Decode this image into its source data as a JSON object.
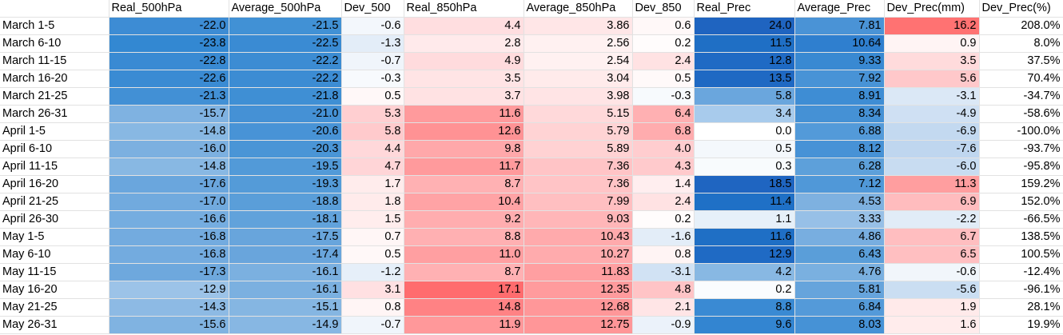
{
  "headers": [
    "",
    "Real_500hPa",
    "Average_500hPa",
    "Dev_500",
    "Real_850hPa",
    "Average_850hPa",
    "Dev_850",
    "Real_Prec",
    "Average_Prec",
    "Dev_Prec(mm)",
    "Dev_Prec(%)"
  ],
  "rows": [
    {
      "label": "March 1-5",
      "cells": [
        {
          "text": "-22.0",
          "bg": "#3d8cd4"
        },
        {
          "text": "-21.5",
          "bg": "#4191d5"
        },
        {
          "text": "-0.6",
          "bg": "#f3f7fc"
        },
        {
          "text": "4.4",
          "bg": "#ffdee0"
        },
        {
          "text": "3.86",
          "bg": "#ffe6e7"
        },
        {
          "text": "0.6",
          "bg": "#fff8f8"
        },
        {
          "text": "24.0",
          "bg": "#1f64c0"
        },
        {
          "text": "7.81",
          "bg": "#4a93d6"
        },
        {
          "text": "16.2",
          "bg": "#ff7272"
        },
        {
          "text": "208.0%",
          "bg": "#ffffff"
        }
      ]
    },
    {
      "label": "March 6-10",
      "cells": [
        {
          "text": "-23.8",
          "bg": "#3388d2"
        },
        {
          "text": "-22.5",
          "bg": "#3a8bd3"
        },
        {
          "text": "-1.3",
          "bg": "#e3edf8"
        },
        {
          "text": "2.8",
          "bg": "#ffeaeb"
        },
        {
          "text": "2.56",
          "bg": "#fff1f1"
        },
        {
          "text": "0.2",
          "bg": "#fffcfc"
        },
        {
          "text": "11.5",
          "bg": "#1f6fc5"
        },
        {
          "text": "10.64",
          "bg": "#2f7fcf"
        },
        {
          "text": "0.9",
          "bg": "#fff4f4"
        },
        {
          "text": "8.0%",
          "bg": "#ffffff"
        }
      ]
    },
    {
      "label": "March 11-15",
      "cells": [
        {
          "text": "-22.8",
          "bg": "#398ad3"
        },
        {
          "text": "-22.2",
          "bg": "#3c8cd3"
        },
        {
          "text": "-0.7",
          "bg": "#f0f5fb"
        },
        {
          "text": "4.9",
          "bg": "#ffdbdd"
        },
        {
          "text": "2.54",
          "bg": "#fff1f1"
        },
        {
          "text": "2.4",
          "bg": "#ffe2e3"
        },
        {
          "text": "12.8",
          "bg": "#1f6ac4"
        },
        {
          "text": "9.33",
          "bg": "#3989d2"
        },
        {
          "text": "3.5",
          "bg": "#ffdbdc"
        },
        {
          "text": "37.5%",
          "bg": "#ffffff"
        }
      ]
    },
    {
      "label": "March 16-20",
      "cells": [
        {
          "text": "-22.6",
          "bg": "#3a8bd3"
        },
        {
          "text": "-22.2",
          "bg": "#3c8cd3"
        },
        {
          "text": "-0.3",
          "bg": "#f7fafd"
        },
        {
          "text": "3.5",
          "bg": "#ffe4e5"
        },
        {
          "text": "3.04",
          "bg": "#ffebeb"
        },
        {
          "text": "0.5",
          "bg": "#fff9f9"
        },
        {
          "text": "13.5",
          "bg": "#1f69c3"
        },
        {
          "text": "7.92",
          "bg": "#4893d6"
        },
        {
          "text": "5.6",
          "bg": "#ffc8ca"
        },
        {
          "text": "70.4%",
          "bg": "#ffffff"
        }
      ]
    },
    {
      "label": "March 21-25",
      "cells": [
        {
          "text": "-21.3",
          "bg": "#4290d5"
        },
        {
          "text": "-21.8",
          "bg": "#3f8fd4"
        },
        {
          "text": "0.5",
          "bg": "#fff8f8"
        },
        {
          "text": "3.7",
          "bg": "#ffe2e3"
        },
        {
          "text": "3.98",
          "bg": "#ffe4e5"
        },
        {
          "text": "-0.3",
          "bg": "#f7fafd"
        },
        {
          "text": "5.8",
          "bg": "#6aa6dd"
        },
        {
          "text": "8.91",
          "bg": "#3e8dd4"
        },
        {
          "text": "-3.1",
          "bg": "#dbe8f6"
        },
        {
          "text": "-34.7%",
          "bg": "#ffffff"
        }
      ]
    },
    {
      "label": "March 26-31",
      "cells": [
        {
          "text": "-15.7",
          "bg": "#7fb2e1"
        },
        {
          "text": "-21.0",
          "bg": "#4591d5"
        },
        {
          "text": "5.3",
          "bg": "#ffcfd1"
        },
        {
          "text": "11.6",
          "bg": "#ff9a9c"
        },
        {
          "text": "5.15",
          "bg": "#ffd9da"
        },
        {
          "text": "6.4",
          "bg": "#ffb0b2"
        },
        {
          "text": "3.4",
          "bg": "#a8cbec"
        },
        {
          "text": "8.34",
          "bg": "#4591d5"
        },
        {
          "text": "-4.9",
          "bg": "#cfe0f3"
        },
        {
          "text": "-58.6%",
          "bg": "#ffffff"
        }
      ]
    },
    {
      "label": "April 1-5",
      "cells": [
        {
          "text": "-14.8",
          "bg": "#88b8e3"
        },
        {
          "text": "-20.6",
          "bg": "#4893d6"
        },
        {
          "text": "5.8",
          "bg": "#ffcacc"
        },
        {
          "text": "12.6",
          "bg": "#ff9294"
        },
        {
          "text": "5.79",
          "bg": "#ffd3d4"
        },
        {
          "text": "6.8",
          "bg": "#ffacae"
        },
        {
          "text": "0.0",
          "bg": "#ffffff"
        },
        {
          "text": "6.88",
          "bg": "#539ad9"
        },
        {
          "text": "-6.9",
          "bg": "#c3d9f0"
        },
        {
          "text": "-100.0%",
          "bg": "#ffffff"
        }
      ]
    },
    {
      "label": "April 6-10",
      "cells": [
        {
          "text": "-16.0",
          "bg": "#7cb0e0"
        },
        {
          "text": "-20.3",
          "bg": "#4a95d6"
        },
        {
          "text": "4.4",
          "bg": "#ffd8da"
        },
        {
          "text": "9.8",
          "bg": "#ffa8aa"
        },
        {
          "text": "5.89",
          "bg": "#ffd2d3"
        },
        {
          "text": "4.0",
          "bg": "#ffcdcf"
        },
        {
          "text": "0.5",
          "bg": "#f4f8fc"
        },
        {
          "text": "8.12",
          "bg": "#4792d6"
        },
        {
          "text": "-7.6",
          "bg": "#bfd6ef"
        },
        {
          "text": "-93.7%",
          "bg": "#ffffff"
        }
      ]
    },
    {
      "label": "April 11-15",
      "cells": [
        {
          "text": "-14.8",
          "bg": "#88b8e3"
        },
        {
          "text": "-19.5",
          "bg": "#529ad8"
        },
        {
          "text": "4.7",
          "bg": "#ffd5d7"
        },
        {
          "text": "11.7",
          "bg": "#ff9a9c"
        },
        {
          "text": "7.36",
          "bg": "#ffc4c6"
        },
        {
          "text": "4.3",
          "bg": "#ffcacc"
        },
        {
          "text": "0.3",
          "bg": "#f8fbfd"
        },
        {
          "text": "6.28",
          "bg": "#5da0da"
        },
        {
          "text": "-6.0",
          "bg": "#c8dcf1"
        },
        {
          "text": "-95.8%",
          "bg": "#ffffff"
        }
      ]
    },
    {
      "label": "April 16-20",
      "cells": [
        {
          "text": "-17.6",
          "bg": "#6aa6dd"
        },
        {
          "text": "-19.3",
          "bg": "#549bd8"
        },
        {
          "text": "1.7",
          "bg": "#ffecec"
        },
        {
          "text": "8.7",
          "bg": "#ffb1b3"
        },
        {
          "text": "7.36",
          "bg": "#ffc4c6"
        },
        {
          "text": "1.4",
          "bg": "#ffeeef"
        },
        {
          "text": "18.5",
          "bg": "#1f65c1"
        },
        {
          "text": "7.12",
          "bg": "#5098d8"
        },
        {
          "text": "11.3",
          "bg": "#ff9e9f"
        },
        {
          "text": "159.2%",
          "bg": "#ffffff"
        }
      ]
    },
    {
      "label": "April 21-25",
      "cells": [
        {
          "text": "-17.0",
          "bg": "#71aade"
        },
        {
          "text": "-18.8",
          "bg": "#5a9ed9"
        },
        {
          "text": "1.8",
          "bg": "#ffebeb"
        },
        {
          "text": "10.4",
          "bg": "#ffa3a5"
        },
        {
          "text": "7.99",
          "bg": "#ffbfc1"
        },
        {
          "text": "2.4",
          "bg": "#ffe2e3"
        },
        {
          "text": "11.4",
          "bg": "#1f70c6"
        },
        {
          "text": "4.53",
          "bg": "#7eb1e0"
        },
        {
          "text": "6.9",
          "bg": "#ffbcbe"
        },
        {
          "text": "152.0%",
          "bg": "#ffffff"
        }
      ]
    },
    {
      "label": "April 26-30",
      "cells": [
        {
          "text": "-16.6",
          "bg": "#75ade0"
        },
        {
          "text": "-18.1",
          "bg": "#61a2db"
        },
        {
          "text": "1.5",
          "bg": "#ffeded"
        },
        {
          "text": "9.2",
          "bg": "#ffadaf"
        },
        {
          "text": "9.03",
          "bg": "#ffb6b8"
        },
        {
          "text": "0.2",
          "bg": "#fffcfc"
        },
        {
          "text": "1.1",
          "bg": "#e6f0f9"
        },
        {
          "text": "3.33",
          "bg": "#97c0e7"
        },
        {
          "text": "-2.2",
          "bg": "#e1ecf7"
        },
        {
          "text": "-66.5%",
          "bg": "#ffffff"
        }
      ]
    },
    {
      "label": "May 1-5",
      "cells": [
        {
          "text": "-16.8",
          "bg": "#73abdf"
        },
        {
          "text": "-17.5",
          "bg": "#68a5dc"
        },
        {
          "text": "0.7",
          "bg": "#fff6f6"
        },
        {
          "text": "8.8",
          "bg": "#ffb0b2"
        },
        {
          "text": "10.43",
          "bg": "#ffaaac"
        },
        {
          "text": "-1.6",
          "bg": "#e3edf8"
        },
        {
          "text": "11.6",
          "bg": "#1f6fc5"
        },
        {
          "text": "4.86",
          "bg": "#78aee0"
        },
        {
          "text": "6.7",
          "bg": "#ffbec0"
        },
        {
          "text": "138.5%",
          "bg": "#ffffff"
        }
      ]
    },
    {
      "label": "May 6-10",
      "cells": [
        {
          "text": "-16.8",
          "bg": "#73abdf"
        },
        {
          "text": "-17.4",
          "bg": "#69a5dc"
        },
        {
          "text": "0.5",
          "bg": "#fff8f8"
        },
        {
          "text": "11.0",
          "bg": "#ff9fa1"
        },
        {
          "text": "10.27",
          "bg": "#ffabad"
        },
        {
          "text": "0.8",
          "bg": "#fff4f4"
        },
        {
          "text": "12.9",
          "bg": "#1f6ac4"
        },
        {
          "text": "6.43",
          "bg": "#5a9ed9"
        },
        {
          "text": "6.5",
          "bg": "#ffbfc1"
        },
        {
          "text": "100.5%",
          "bg": "#ffffff"
        }
      ]
    },
    {
      "label": "May 11-15",
      "cells": [
        {
          "text": "-17.3",
          "bg": "#6ea8dd"
        },
        {
          "text": "-16.1",
          "bg": "#7bb0e0"
        },
        {
          "text": "-1.2",
          "bg": "#e6eff9"
        },
        {
          "text": "8.7",
          "bg": "#ffb1b3"
        },
        {
          "text": "11.83",
          "bg": "#ff9fa1"
        },
        {
          "text": "-3.1",
          "bg": "#d1e2f4"
        },
        {
          "text": "4.2",
          "bg": "#88b8e3"
        },
        {
          "text": "4.76",
          "bg": "#7ab0e0"
        },
        {
          "text": "-0.6",
          "bg": "#f1f6fb"
        },
        {
          "text": "-12.4%",
          "bg": "#ffffff"
        }
      ]
    },
    {
      "label": "May 16-20",
      "cells": [
        {
          "text": "-12.9",
          "bg": "#9cc3e8"
        },
        {
          "text": "-16.1",
          "bg": "#7bb0e0"
        },
        {
          "text": "3.1",
          "bg": "#ffe0e2"
        },
        {
          "text": "17.1",
          "bg": "#ff6c6e"
        },
        {
          "text": "12.35",
          "bg": "#ff9b9d"
        },
        {
          "text": "4.8",
          "bg": "#ffc4c6"
        },
        {
          "text": "0.2",
          "bg": "#fafcfe"
        },
        {
          "text": "5.81",
          "bg": "#66a4dc"
        },
        {
          "text": "-5.6",
          "bg": "#cadef2"
        },
        {
          "text": "-96.1%",
          "bg": "#ffffff"
        }
      ]
    },
    {
      "label": "May 21-25",
      "cells": [
        {
          "text": "-14.3",
          "bg": "#8dbae4"
        },
        {
          "text": "-15.1",
          "bg": "#85b6e2"
        },
        {
          "text": "0.8",
          "bg": "#fff5f5"
        },
        {
          "text": "14.8",
          "bg": "#ff8284"
        },
        {
          "text": "12.68",
          "bg": "#ff9799"
        },
        {
          "text": "2.1",
          "bg": "#ffe5e6"
        },
        {
          "text": "8.8",
          "bg": "#3a8ad3"
        },
        {
          "text": "6.84",
          "bg": "#549ad9"
        },
        {
          "text": "1.9",
          "bg": "#ffeaea"
        },
        {
          "text": "28.1%",
          "bg": "#ffffff"
        }
      ]
    },
    {
      "label": "May 26-31",
      "cells": [
        {
          "text": "-15.6",
          "bg": "#80b3e1"
        },
        {
          "text": "-14.9",
          "bg": "#87b7e3"
        },
        {
          "text": "-0.7",
          "bg": "#f0f5fb"
        },
        {
          "text": "11.9",
          "bg": "#ff989a"
        },
        {
          "text": "12.75",
          "bg": "#ff9698"
        },
        {
          "text": "-0.9",
          "bg": "#ebf2fa"
        },
        {
          "text": "9.6",
          "bg": "#3385d1"
        },
        {
          "text": "8.03",
          "bg": "#4692d6"
        },
        {
          "text": "1.6",
          "bg": "#ffecec"
        },
        {
          "text": "19.9%",
          "bg": "#ffffff"
        }
      ]
    }
  ]
}
